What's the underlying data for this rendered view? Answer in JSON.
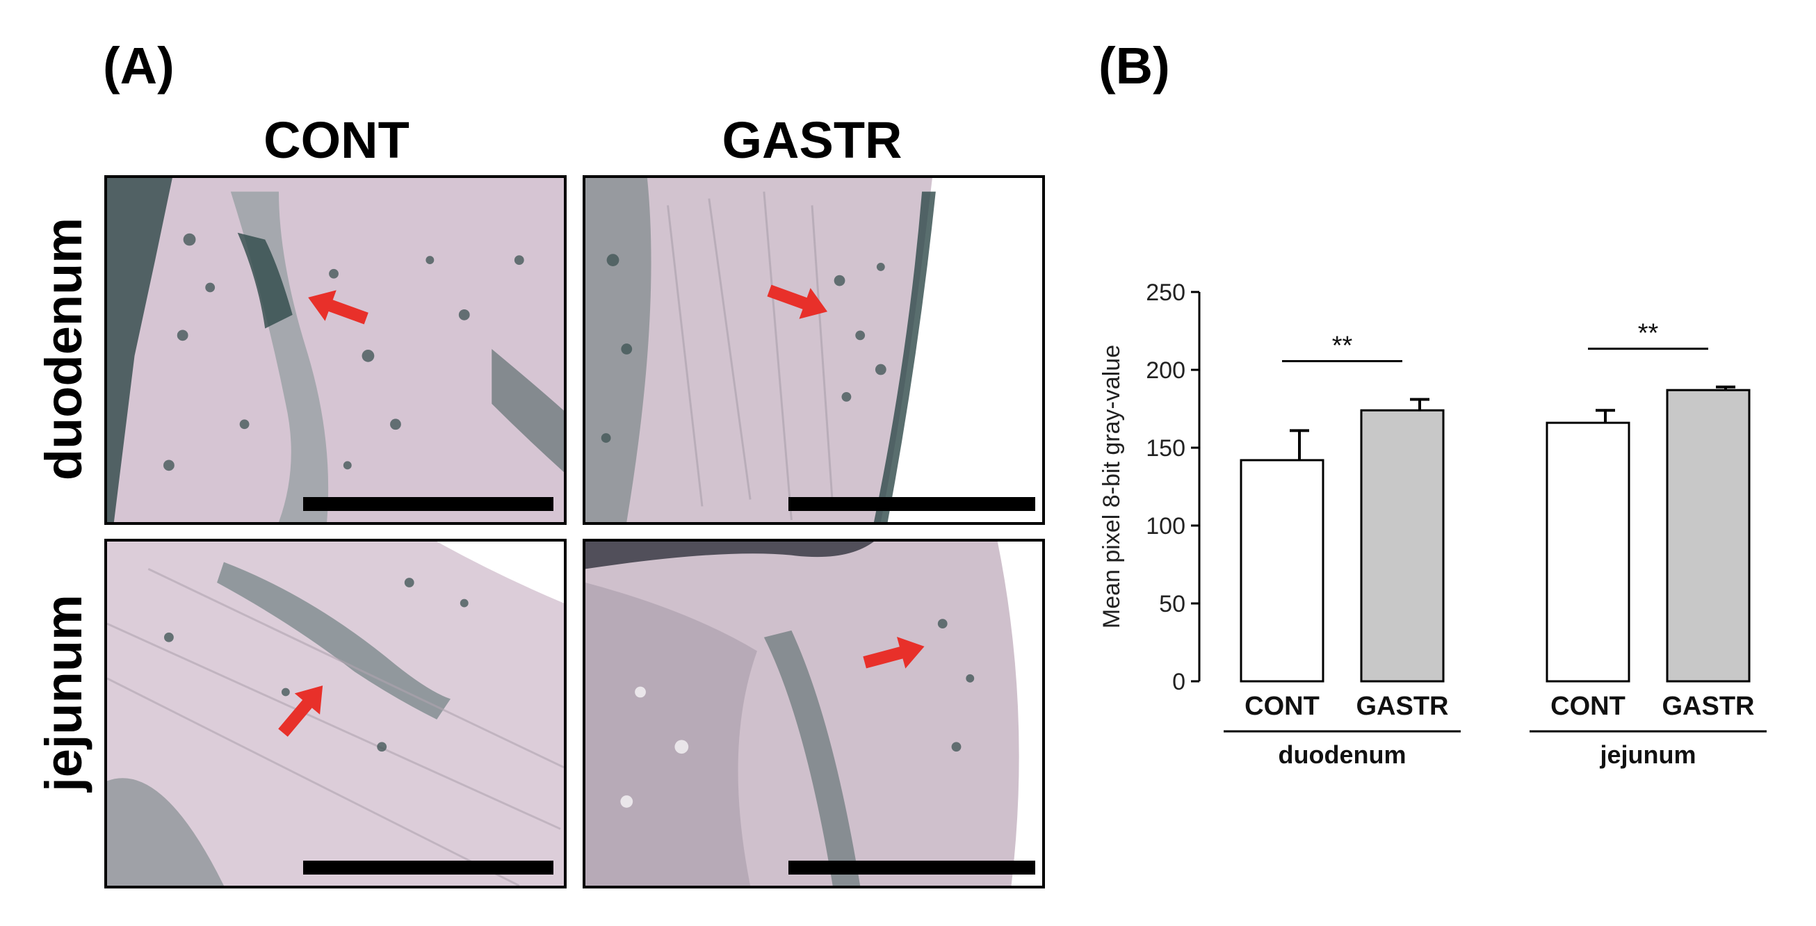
{
  "panels": {
    "a_label": "(A)",
    "b_label": "(B)"
  },
  "micrographs": {
    "columns": [
      "CONT",
      "GASTR"
    ],
    "rows": [
      "duodenum",
      "jejunum"
    ],
    "tiles": [
      {
        "row": "duodenum",
        "group": "CONT",
        "arrow_direction": "left",
        "has_scale_bar": true
      },
      {
        "row": "duodenum",
        "group": "GASTR",
        "arrow_direction": "right-down",
        "has_scale_bar": true
      },
      {
        "row": "jejunum",
        "group": "CONT",
        "arrow_direction": "up-right",
        "has_scale_bar": true
      },
      {
        "row": "jejunum",
        "group": "GASTR",
        "arrow_direction": "right",
        "has_scale_bar": true
      }
    ],
    "colors": {
      "tissue": "#d9c9d6",
      "stain": "#2f4a4a",
      "arrow": "#e8302a",
      "scale_bar": "#000000"
    }
  },
  "chart_data": {
    "type": "bar",
    "ylabel": "Mean pixel 8-bit gray-value",
    "ylim": [
      0,
      250
    ],
    "yticks": [
      0,
      50,
      100,
      150,
      200,
      250
    ],
    "groups": [
      {
        "name": "duodenum",
        "bars": [
          {
            "category": "CONT",
            "value": 142,
            "error": 19,
            "color": "#ffffff"
          },
          {
            "category": "GASTR",
            "value": 174,
            "error": 7,
            "color": "#c8c8c8"
          }
        ],
        "significance": "**"
      },
      {
        "name": "jejunum",
        "bars": [
          {
            "category": "CONT",
            "value": 166,
            "error": 8,
            "color": "#ffffff"
          },
          {
            "category": "GASTR",
            "value": 187,
            "error": 2,
            "color": "#c8c8c8"
          }
        ],
        "significance": "**"
      }
    ],
    "grid": false,
    "legend": "none"
  }
}
